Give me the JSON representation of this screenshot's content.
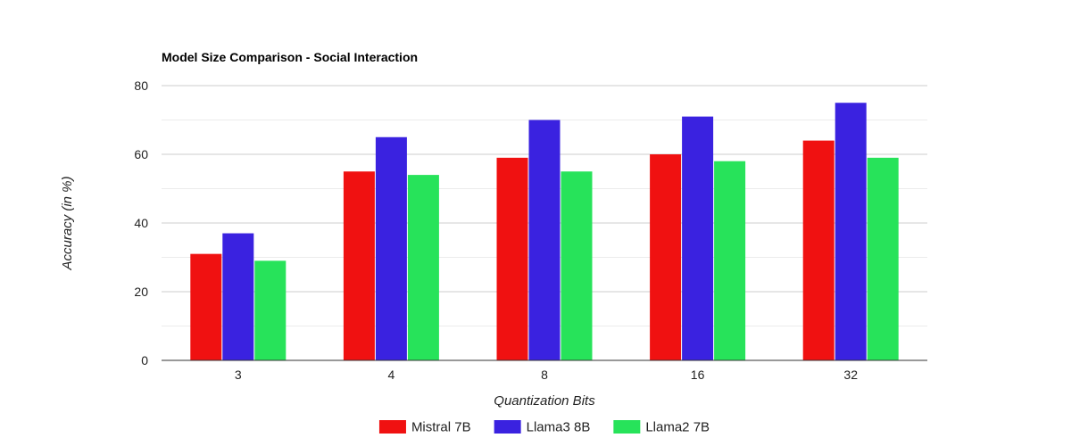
{
  "chart_data": {
    "type": "bar",
    "title": "Model Size Comparison - Social Interaction",
    "xlabel": "Quantization Bits",
    "ylabel": "Accuracy (in %)",
    "categories": [
      "3",
      "4",
      "8",
      "16",
      "32"
    ],
    "series": [
      {
        "name": "Mistral 7B",
        "color": "#f01111",
        "values": [
          31,
          55,
          59,
          60,
          64
        ]
      },
      {
        "name": "Llama3 8B",
        "color": "#3a22e0",
        "values": [
          37,
          65,
          70,
          71,
          75
        ]
      },
      {
        "name": "Llama2 7B",
        "color": "#27e35a",
        "values": [
          29,
          54,
          55,
          58,
          59
        ]
      }
    ],
    "ylim": [
      0,
      80
    ],
    "yticks": [
      0,
      20,
      40,
      60,
      80
    ],
    "grid": true,
    "legend": "bottom"
  }
}
